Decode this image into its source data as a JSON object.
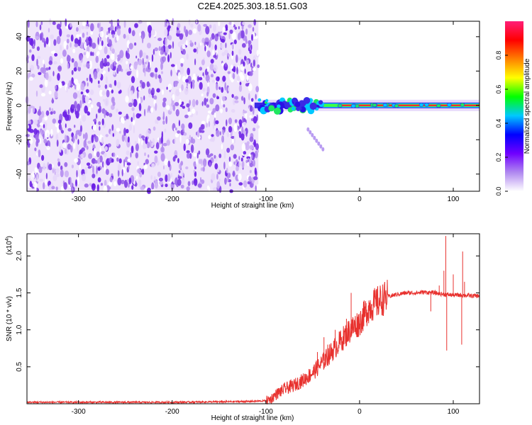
{
  "title": "C2E4.2025.303.18.51.G03",
  "chart_data": [
    {
      "type": "heatmap",
      "name": "spectrogram",
      "xlabel": "Height of straight line (km)",
      "ylabel": "Frequency (Hz)",
      "xlim": [
        -355,
        128
      ],
      "ylim": [
        -50,
        49
      ],
      "xticks": [
        -300,
        -200,
        -100,
        0,
        100
      ],
      "xtick_labels": [
        "-300",
        "-200",
        "-100",
        "0",
        "100"
      ],
      "yticks": [
        -40,
        -20,
        0,
        20,
        40
      ],
      "ytick_labels": [
        "-40",
        "-20",
        "0",
        "20",
        "40"
      ],
      "noise_region_x": [
        -355,
        -108
      ],
      "signal_line": {
        "x": [
          -112,
          128
        ],
        "frequency": 0
      },
      "signal_blobs_x": [
        -108,
        -40
      ],
      "colorbar": {
        "label": "Normalized spectral amplitude",
        "ticks": [
          0.0,
          0.2,
          0.4,
          0.6,
          0.8
        ],
        "tick_labels": [
          "0.0",
          "0.2",
          "0.4",
          "0.6",
          "0.8"
        ],
        "range": [
          0,
          1
        ],
        "colors": [
          "#ffffff",
          "#b088f0",
          "#7000ff",
          "#0000ff",
          "#00c8ff",
          "#00ff00",
          "#ffff00",
          "#ff8000",
          "#ff0000",
          "#ff1e78"
        ]
      }
    },
    {
      "type": "line",
      "name": "snr",
      "xlabel": "Height of straight line (km)",
      "ylabel": "SNR (10 * v/v)",
      "multiplier_label": "(x10",
      "multiplier_exp": "4",
      "multiplier_close": ")",
      "xlim": [
        -355,
        128
      ],
      "ylim": [
        0,
        2.3
      ],
      "xticks": [
        -300,
        -200,
        -100,
        0,
        100
      ],
      "xtick_labels": [
        "-300",
        "-200",
        "-100",
        "0",
        "100"
      ],
      "yticks": [
        0.5,
        1.0,
        1.5,
        2.0
      ],
      "ytick_labels": [
        "0.5",
        "1.0",
        "1.5",
        "2.0"
      ],
      "color": "#e8312e",
      "series_x": [
        -355,
        -300,
        -200,
        -120,
        -100,
        -95,
        -90,
        -80,
        -70,
        -60,
        -50,
        -40,
        -30,
        -20,
        -10,
        0,
        10,
        20,
        30,
        40,
        50,
        60,
        70,
        80,
        90,
        100,
        110,
        120,
        128
      ],
      "series_y": [
        0.02,
        0.02,
        0.02,
        0.03,
        0.04,
        0.06,
        0.12,
        0.2,
        0.25,
        0.32,
        0.42,
        0.55,
        0.7,
        0.85,
        1.0,
        1.1,
        1.3,
        1.38,
        1.45,
        1.48,
        1.5,
        1.5,
        1.51,
        1.5,
        1.48,
        1.47,
        1.47,
        1.46,
        1.46
      ],
      "spikes": [
        {
          "x": -64,
          "y": 0.3
        },
        {
          "x": -50,
          "y": 0.45
        },
        {
          "x": -45,
          "y": 0.7
        },
        {
          "x": -38,
          "y": 0.9
        },
        {
          "x": -34,
          "y": 0.8
        },
        {
          "x": -26,
          "y": 1.0
        },
        {
          "x": -14,
          "y": 1.15
        },
        {
          "x": -9,
          "y": 1.5
        },
        {
          "x": 7,
          "y": 1.23
        },
        {
          "x": 13,
          "y": 1.35
        },
        {
          "x": 76,
          "y": 1.25
        },
        {
          "x": 85,
          "y": 1.6
        },
        {
          "x": 90,
          "y": 1.8
        },
        {
          "x": 92,
          "y": 2.27
        },
        {
          "x": 93,
          "y": 0.72
        },
        {
          "x": 100,
          "y": 1.75
        },
        {
          "x": 109,
          "y": 0.8
        },
        {
          "x": 110,
          "y": 2.06
        },
        {
          "x": 112,
          "y": 1.65
        }
      ]
    }
  ]
}
